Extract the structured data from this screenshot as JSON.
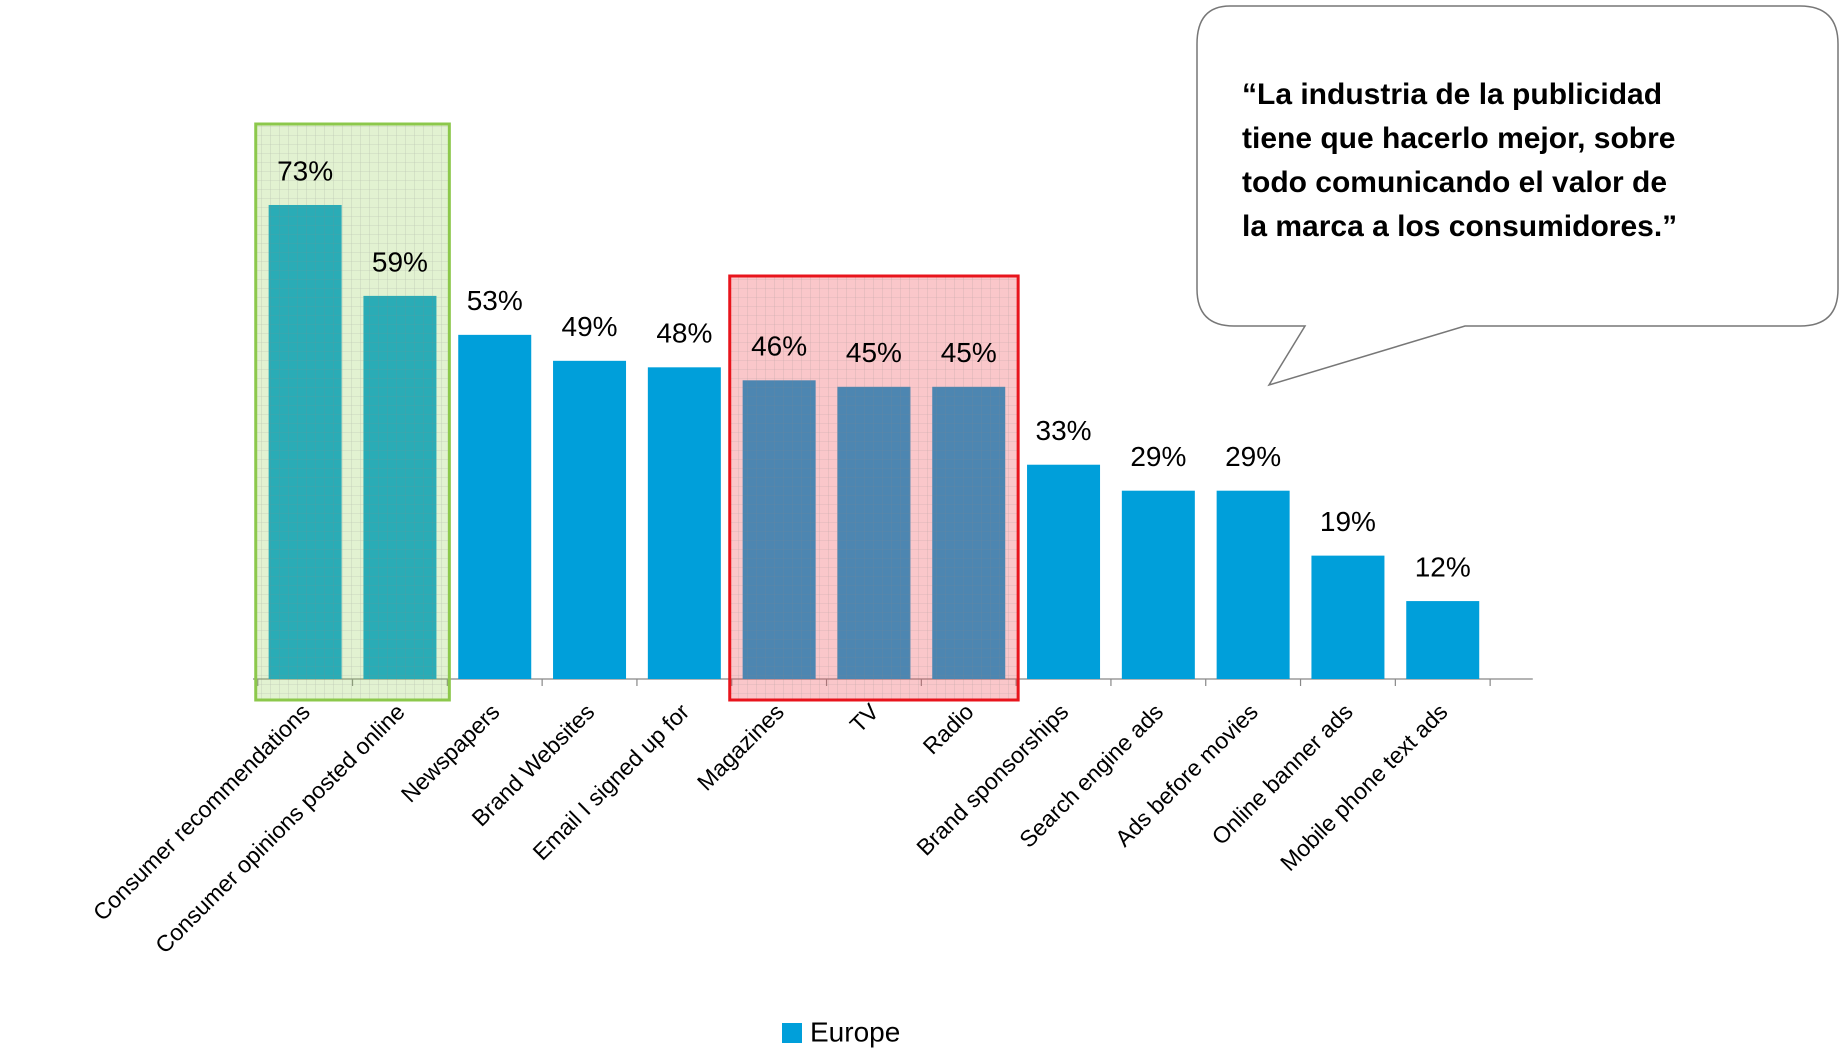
{
  "chart_data": {
    "type": "bar",
    "categories": [
      "Consumer recommendations",
      "Consumer opinions posted online",
      "Newspapers",
      "Brand Websites",
      "Email I signed up for",
      "Magazines",
      "TV",
      "Radio",
      "Brand sponsorships",
      "Search engine ads",
      "Ads before movies",
      "Online banner ads",
      "Mobile phone text ads"
    ],
    "series": [
      {
        "name": "Europe",
        "color": "#009fda",
        "values": [
          73,
          59,
          53,
          49,
          48,
          46,
          45,
          45,
          33,
          29,
          29,
          19,
          12
        ],
        "value_labels": [
          "73%",
          "59%",
          "53%",
          "49%",
          "48%",
          "46%",
          "45%",
          "45%",
          "33%",
          "29%",
          "29%",
          "19%",
          "12%"
        ]
      }
    ],
    "ylim": [
      0,
      75
    ],
    "legend": "bottom"
  },
  "callout": {
    "lines": [
      "“La industria de la publicidad",
      "tiene que hacerlo mejor, sobre",
      "todo comunicando el valor de",
      "la marca a los consumidores.”"
    ]
  }
}
